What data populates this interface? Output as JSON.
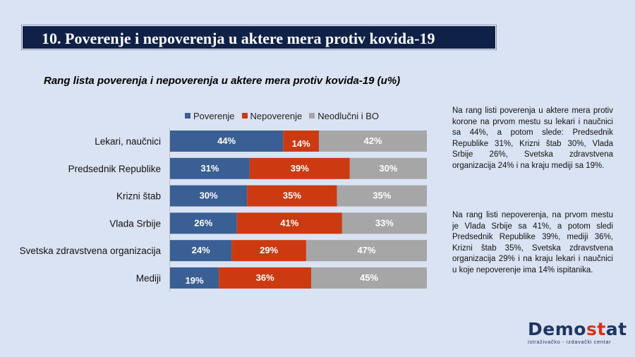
{
  "header": {
    "title": "10. Poverenje i nepoverenja u aktere mera protiv kovida-19"
  },
  "chart_data": {
    "type": "bar",
    "orientation": "horizontal",
    "stacked": true,
    "title": "Rang lista poverenja i nepoverenja u aktere mera protiv kovida-19 (u%)",
    "categories": [
      "Lekari, naučnici",
      "Predsednik Republike",
      "Krizni štab",
      "Vlada Srbije",
      "Svetska zdravstvena organizacija",
      "Mediji"
    ],
    "series": [
      {
        "name": "Poverenje",
        "color": "#3a5f94",
        "values": [
          44,
          31,
          30,
          26,
          24,
          19
        ],
        "labels": [
          "44%",
          "31%",
          "30%",
          "26%",
          "24%",
          "19%"
        ]
      },
      {
        "name": "Nepoverenje",
        "color": "#cc3a12",
        "values": [
          14,
          39,
          35,
          41,
          29,
          36
        ],
        "labels": [
          "14%",
          "39%",
          "35%",
          "41%",
          "29%",
          "36%"
        ]
      },
      {
        "name": "Neodlučni i BO",
        "color": "#a6a6a6",
        "values": [
          42,
          30,
          35,
          33,
          47,
          45
        ],
        "labels": [
          "42%",
          "30%",
          "35%",
          "33%",
          "47%",
          "45%"
        ]
      }
    ],
    "xlim": [
      0,
      100
    ],
    "legend_position": "top",
    "grid": false
  },
  "descriptions": [
    "Na rang listi poverenja u aktere mera protiv korone na prvom mestu su lekari i naučnici sa 44%, a potom slede: Predsednik Republike 31%, Krizni štab 30%, Vlada Srbije 26%, Svetska zdravstvena organizacija 24% i na kraju mediji sa 19%.",
    "Na rang listi nepoverenja, na prvom mestu je Vlada Srbije sa 41%, a potom sledi Predsednik Republike 39%, mediji 36%, Krizni štab 35%, Svetska zdravstvena organizacija 29% i na kraju lekari i naučnici u koje nepoverenje ima 14% ispitanika."
  ],
  "logo": {
    "name_part1": "Demo",
    "name_part2": "st",
    "name_part3": "at",
    "tagline": "istraživačko - izdavački centar"
  }
}
